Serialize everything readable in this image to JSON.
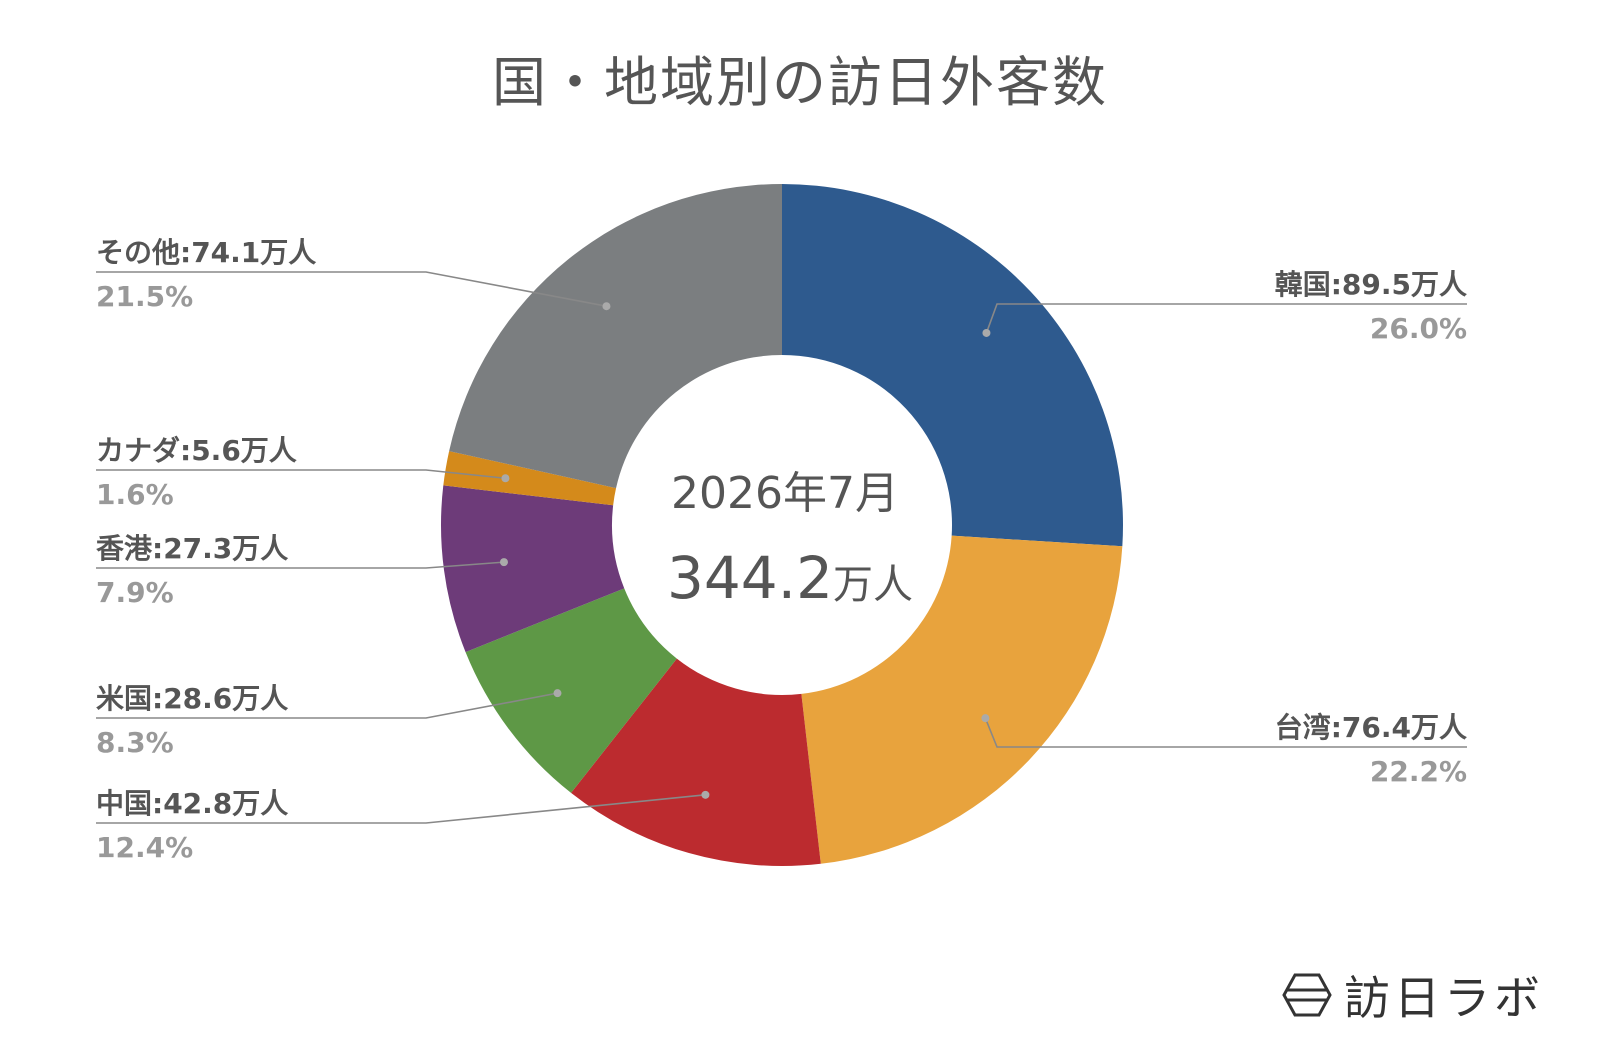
{
  "title": "国・地域別の訪日外客数",
  "brand": {
    "name": "訪日ラボ",
    "icon": "hexagon-logo-icon"
  },
  "chart_data": {
    "type": "pie",
    "style": "donut",
    "title": "国・地域別の訪日外客数",
    "center": {
      "period": "2026年7月",
      "total_value": "344.2",
      "total_unit": "万人"
    },
    "unit": "万人",
    "slices": [
      {
        "name": "韓国",
        "value": 89.5,
        "percent": "26.0%",
        "label": "韓国:89.5万人",
        "color": "#2E5A8E"
      },
      {
        "name": "台湾",
        "value": 76.4,
        "percent": "22.2%",
        "label": "台湾:76.4万人",
        "color": "#E8A33D"
      },
      {
        "name": "中国",
        "value": 42.8,
        "percent": "12.4%",
        "label": "中国:42.8万人",
        "color": "#BC2B2F"
      },
      {
        "name": "米国",
        "value": 28.6,
        "percent": "8.3%",
        "label": "米国:28.6万人",
        "color": "#5E9846"
      },
      {
        "name": "香港",
        "value": 27.3,
        "percent": "7.9%",
        "label": "香港:27.3万人",
        "color": "#6D3B79"
      },
      {
        "name": "カナダ",
        "value": 5.6,
        "percent": "1.6%",
        "label": "カナダ:5.6万人",
        "color": "#D48A1B"
      },
      {
        "name": "その他",
        "value": 74.1,
        "percent": "21.5%",
        "label": "その他:74.1万人",
        "color": "#7B7E80"
      }
    ]
  }
}
